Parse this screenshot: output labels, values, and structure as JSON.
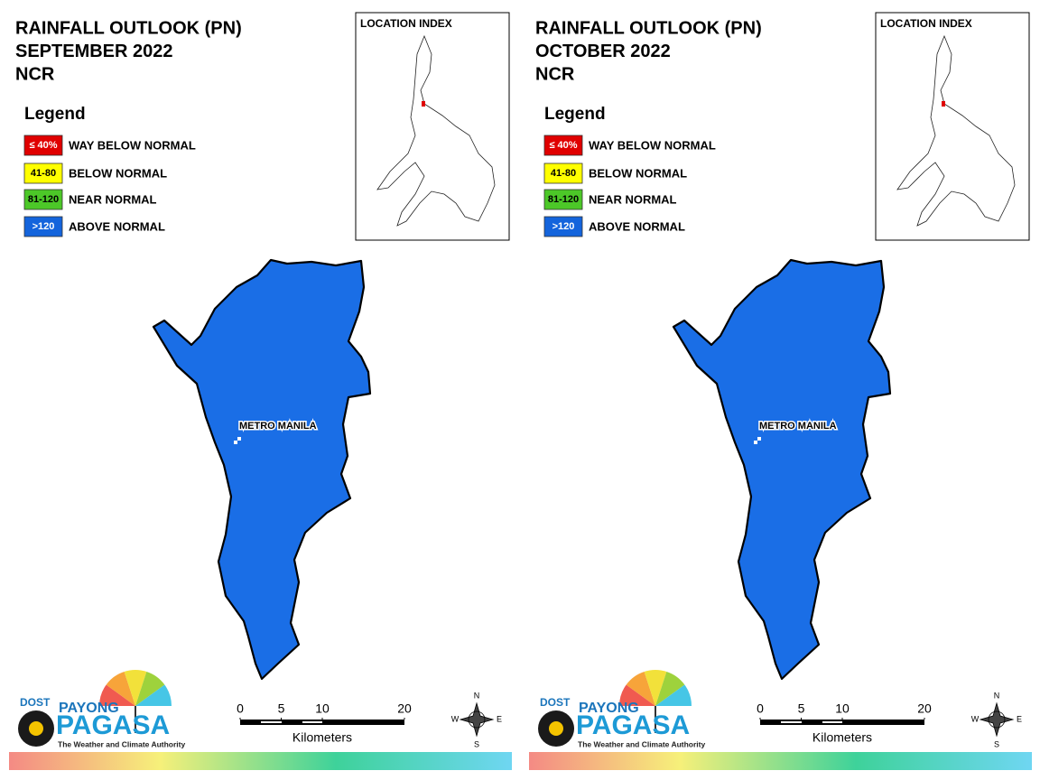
{
  "panels": [
    {
      "title_lines": [
        "RAINFALL OUTLOOK (PN)",
        "SEPTEMBER 2022",
        "NCR"
      ],
      "legend_title": "Legend",
      "legend": [
        {
          "key": "≤ 40%",
          "label": "WAY BELOW NORMAL",
          "color": "#e00000",
          "text_color": "#ffffff"
        },
        {
          "key": "41-80",
          "label": "BELOW NORMAL",
          "color": "#ffff00",
          "text_color": "#000000"
        },
        {
          "key": "81-120",
          "label": "NEAR NORMAL",
          "color": "#4cc828",
          "text_color": "#000000"
        },
        {
          "key": ">120",
          "label": "ABOVE NORMAL",
          "color": "#1464dc",
          "text_color": "#ffffff"
        }
      ],
      "location_index": "LOCATION INDEX",
      "place_label": "METRO MANILA",
      "map_color": "#1a6ee6",
      "scale": {
        "ticks": [
          0,
          5,
          10,
          20
        ],
        "unit": "Kilometers"
      },
      "compass": {
        "n": "N",
        "e": "E",
        "s": "S",
        "w": "W"
      },
      "logo": {
        "agency": "DOST",
        "brand_top": "PAYONG",
        "brand": "PAGASA",
        "tagline": "The Weather and Climate Authority"
      }
    },
    {
      "title_lines": [
        "RAINFALL OUTLOOK (PN)",
        "OCTOBER 2022",
        "NCR"
      ],
      "legend_title": "Legend",
      "legend": [
        {
          "key": "≤ 40%",
          "label": "WAY BELOW NORMAL",
          "color": "#e00000",
          "text_color": "#ffffff"
        },
        {
          "key": "41-80",
          "label": "BELOW NORMAL",
          "color": "#ffff00",
          "text_color": "#000000"
        },
        {
          "key": "81-120",
          "label": "NEAR NORMAL",
          "color": "#4cc828",
          "text_color": "#000000"
        },
        {
          "key": ">120",
          "label": "ABOVE NORMAL",
          "color": "#1464dc",
          "text_color": "#ffffff"
        }
      ],
      "location_index": "LOCATION INDEX",
      "place_label": "METRO MANILA",
      "map_color": "#1a6ee6",
      "scale": {
        "ticks": [
          0,
          5,
          10,
          20
        ],
        "unit": "Kilometers"
      },
      "compass": {
        "n": "N",
        "e": "E",
        "s": "S",
        "w": "W"
      },
      "logo": {
        "agency": "DOST",
        "brand_top": "PAYONG",
        "brand": "PAGASA",
        "tagline": "The Weather and Climate Authority"
      }
    }
  ]
}
